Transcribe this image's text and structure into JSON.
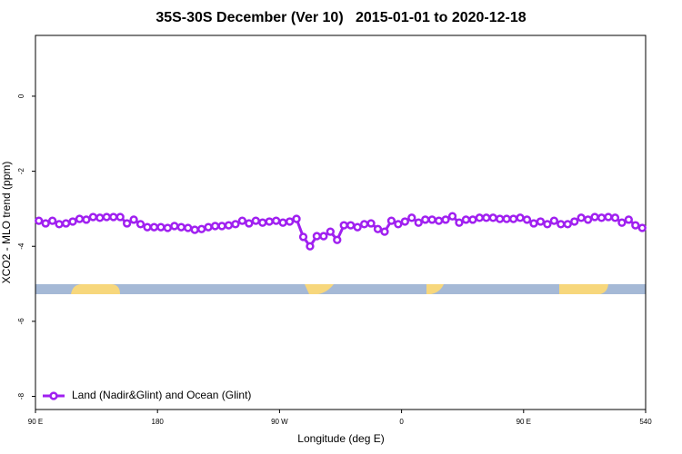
{
  "chart_data": {
    "type": "line",
    "title": "35S-30S December (Ver 10)   2015-01-01 to 2020-12-18",
    "x_label": "Longitude (deg E)",
    "y_label": "XCO2 - MLO trend (ppm)",
    "x": [
      92.5,
      97.5,
      102.5,
      107.5,
      112.5,
      117.5,
      122.5,
      127.5,
      132.5,
      137.5,
      142.5,
      147.5,
      152.5,
      157.5,
      162.5,
      167.5,
      172.5,
      177.5,
      182.5,
      187.5,
      192.5,
      197.5,
      202.5,
      207.5,
      212.5,
      217.5,
      222.5,
      227.5,
      232.5,
      237.5,
      242.5,
      247.5,
      252.5,
      257.5,
      262.5,
      267.5,
      272.5,
      277.5,
      282.5,
      287.5,
      292.5,
      297.5,
      302.5,
      307.5,
      312.5,
      317.5,
      322.5,
      327.5,
      332.5,
      337.5,
      342.5,
      347.5,
      352.5,
      357.5,
      362.5,
      367.5,
      372.5,
      377.5,
      382.5,
      387.5,
      392.5,
      397.5,
      402.5,
      407.5,
      412.5,
      417.5,
      422.5,
      427.5,
      432.5,
      437.5,
      442.5,
      447.5,
      452.5,
      457.5,
      462.5,
      467.5,
      472.5,
      477.5,
      482.5,
      487.5,
      492.5,
      497.5,
      502.5,
      507.5,
      512.5,
      517.5,
      522.5,
      527.5,
      532.5,
      537.5
    ],
    "series": [
      {
        "name": "Land (Nadir&Glint) and Ocean (Glint)",
        "color": "#a020f0",
        "values": [
          -3.32,
          -3.39,
          -3.32,
          -3.41,
          -3.39,
          -3.34,
          -3.27,
          -3.29,
          -3.22,
          -3.24,
          -3.22,
          -3.22,
          -3.22,
          -3.39,
          -3.29,
          -3.41,
          -3.49,
          -3.49,
          -3.49,
          -3.51,
          -3.46,
          -3.49,
          -3.51,
          -3.56,
          -3.54,
          -3.49,
          -3.46,
          -3.46,
          -3.44,
          -3.41,
          -3.32,
          -3.39,
          -3.32,
          -3.37,
          -3.34,
          -3.32,
          -3.37,
          -3.34,
          -3.27,
          -3.75,
          -4.0,
          -3.73,
          -3.73,
          -3.61,
          -3.83,
          -3.44,
          -3.44,
          -3.49,
          -3.41,
          -3.39,
          -3.54,
          -3.61,
          -3.32,
          -3.41,
          -3.34,
          -3.24,
          -3.37,
          -3.29,
          -3.29,
          -3.32,
          -3.29,
          -3.2,
          -3.37,
          -3.29,
          -3.29,
          -3.24,
          -3.24,
          -3.24,
          -3.27,
          -3.27,
          -3.27,
          -3.24,
          -3.29,
          -3.39,
          -3.34,
          -3.41,
          -3.32,
          -3.41,
          -3.41,
          -3.34,
          -3.24,
          -3.29,
          -3.22,
          -3.24,
          -3.22,
          -3.24,
          -3.37,
          -3.29,
          -3.44,
          -3.51
        ]
      }
    ],
    "xlim": [
      90,
      540
    ],
    "xticks": [
      {
        "value": 90,
        "label": "90 E"
      },
      180,
      {
        "value": 270,
        "label": "90 W"
      },
      {
        "value": 360,
        "label": "0"
      },
      {
        "value": 450,
        "label": "90 E"
      },
      540
    ],
    "ylim": [
      -8.35,
      1.62
    ],
    "yticks": [
      0,
      -2,
      -4,
      -6,
      -8
    ],
    "legend": "bottom-left"
  }
}
